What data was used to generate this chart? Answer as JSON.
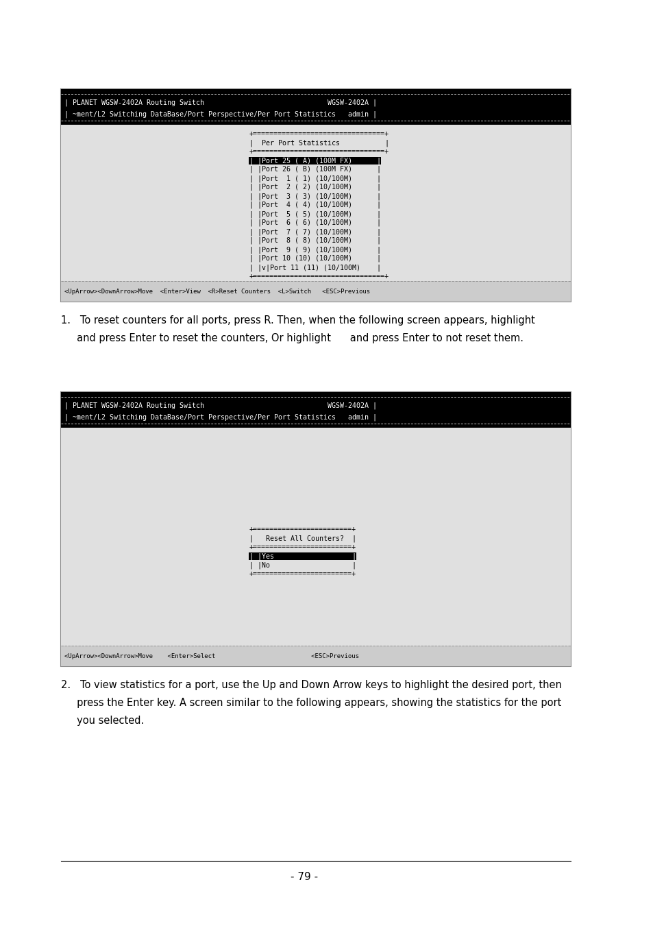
{
  "page_bg": "#ffffff",
  "page_number": "- 79 -",
  "terminal1": {
    "header_line1": "| PLANET WGSW-2402A Routing Switch                              WGSW-2402A |",
    "header_line2": "| ~ment/L2 Switching DataBase/Port Perspective/Per Port Statistics   admin |",
    "box_top": "+================================+",
    "box_label": "|  Per Port Statistics           |",
    "highlighted_row": "| |Port 25 ( A) (100M FX)      |",
    "rows": [
      "| |Port 26 ( B) (100M FX)      |",
      "| |Port  1 ( 1) (10/100M)      |",
      "| |Port  2 ( 2) (10/100M)      |",
      "| |Port  3 ( 3) (10/100M)      |",
      "| |Port  4 ( 4) (10/100M)      |",
      "| |Port  5 ( 5) (10/100M)      |",
      "| |Port  6 ( 6) (10/100M)      |",
      "| |Port  7 ( 7) (10/100M)      |",
      "| |Port  8 ( 8) (10/100M)      |",
      "| |Port  9 ( 9) (10/100M)      |",
      "| |Port 10 (10) (10/100M)      |",
      "| |v|Port 11 (11) (10/100M)    |"
    ],
    "box_bottom": "+================================+",
    "status_bar": "<UpArrow><DownArrow>Move  <Enter>View  <R>Reset Counters  <L>Switch   <ESC>Previous"
  },
  "text1_line1": "1.   To reset counters for all ports, press R. Then, when the following screen appears, highlight",
  "text1_line2": "     and press Enter to reset the counters, Or highlight      and press Enter to not reset them.",
  "terminal2": {
    "header_line1": "| PLANET WGSW-2402A Routing Switch                              WGSW-2402A |",
    "header_line2": "| ~ment/L2 Switching DataBase/Port Perspective/Per Port Statistics   admin |",
    "dialog_top": "+========================+",
    "dialog_label": "|   Reset All Counters?  |",
    "dialog_sep": "+========================+",
    "dialog_yes": "| |Yes                   |",
    "dialog_no": "| |No                    |",
    "dialog_bottom": "+========================+",
    "status_bar": "<UpArrow><DownArrow>Move    <Enter>Select                          <ESC>Previous"
  },
  "text2_line1": "2.   To view statistics for a port, use the Up and Down Arrow keys to highlight the desired port, then",
  "text2_line2": "     press the Enter key. A screen similar to the following appears, showing the statistics for the port",
  "text2_line3": "     you selected."
}
